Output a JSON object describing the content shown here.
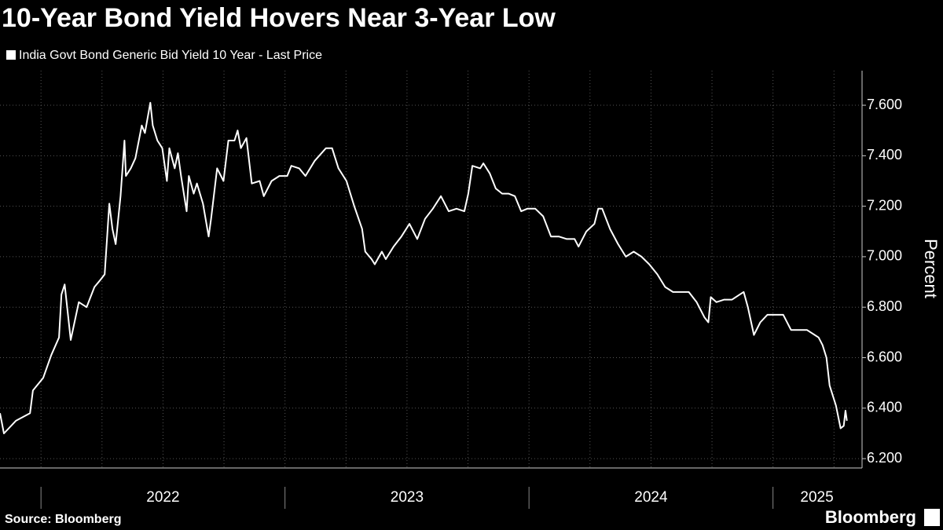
{
  "chart_data": {
    "type": "line",
    "title": "10-Year Bond Yield Hovers Near 3-Year Low",
    "y_label": "Percent",
    "source": "Source: Bloomberg",
    "brand": "Bloomberg",
    "xlim": [
      2021.832,
      2025.365
    ],
    "ylim": [
      6.163,
      7.737
    ],
    "xticks": [
      {
        "value": 2022.5,
        "label": "2022"
      },
      {
        "value": 2023.5,
        "label": "2023"
      },
      {
        "value": 2024.5,
        "label": "2024"
      },
      {
        "value": 2025.18,
        "label": "2025"
      }
    ],
    "yticks": [
      {
        "value": 6.2,
        "label": "6.200"
      },
      {
        "value": 6.4,
        "label": "6.400"
      },
      {
        "value": 6.6,
        "label": "6.600"
      },
      {
        "value": 6.8,
        "label": "6.800"
      },
      {
        "value": 7.0,
        "label": "7.000"
      },
      {
        "value": 7.2,
        "label": "7.200"
      },
      {
        "value": 7.4,
        "label": "7.400"
      },
      {
        "value": 7.6,
        "label": "7.600"
      }
    ],
    "grid": true,
    "x": [
      2021.832,
      2021.848,
      2021.897,
      2021.955,
      2021.967,
      2022.009,
      2022.042,
      2022.074,
      2022.084,
      2022.097,
      2022.122,
      2022.155,
      2022.187,
      2022.219,
      2022.245,
      2022.261,
      2022.28,
      2022.293,
      2022.306,
      2022.326,
      2022.342,
      2022.348,
      2022.368,
      2022.387,
      2022.413,
      2022.426,
      2022.448,
      2022.458,
      2022.477,
      2022.497,
      2022.516,
      2022.526,
      2022.548,
      2022.561,
      2022.574,
      2022.597,
      2022.606,
      2022.626,
      2022.639,
      2022.664,
      2022.687,
      2022.697,
      2022.722,
      2022.748,
      2022.768,
      2022.793,
      2022.806,
      2022.819,
      2022.842,
      2022.864,
      2022.896,
      2022.913,
      2022.945,
      2022.977,
      2023.009,
      2023.026,
      2023.058,
      2023.084,
      2023.122,
      2023.168,
      2023.193,
      2023.219,
      2023.252,
      2023.284,
      2023.316,
      2023.329,
      2023.355,
      2023.368,
      2023.397,
      2023.413,
      2023.445,
      2023.477,
      2023.51,
      2023.542,
      2023.574,
      2023.606,
      2023.639,
      2023.671,
      2023.703,
      2023.735,
      2023.751,
      2023.768,
      2023.8,
      2023.813,
      2023.839,
      2023.864,
      2023.89,
      2023.916,
      2023.942,
      2023.968,
      2023.993,
      2024.026,
      2024.058,
      2024.09,
      2024.122,
      2024.155,
      2024.187,
      2024.203,
      2024.235,
      2024.268,
      2024.284,
      2024.3,
      2024.332,
      2024.365,
      2024.397,
      2024.429,
      2024.461,
      2024.493,
      2024.526,
      2024.558,
      2024.59,
      2024.622,
      2024.655,
      2024.687,
      2024.719,
      2024.735,
      2024.745,
      2024.768,
      2024.8,
      2024.832,
      2024.864,
      2024.88,
      2024.897,
      2024.922,
      2024.948,
      2024.977,
      2025.01,
      2025.042,
      2025.074,
      2025.106,
      2025.139,
      2025.171,
      2025.187,
      2025.203,
      2025.219,
      2025.232,
      2025.258,
      2025.277,
      2025.29,
      2025.297,
      2025.303
    ],
    "series": [
      {
        "name": "India Govt Bond Generic Bid Yield 10 Year - Last Price",
        "color": "#ffffff",
        "values": [
          6.38,
          6.3,
          6.35,
          6.38,
          6.47,
          6.52,
          6.61,
          6.68,
          6.85,
          6.89,
          6.67,
          6.82,
          6.8,
          6.88,
          6.91,
          6.93,
          7.21,
          7.11,
          7.05,
          7.24,
          7.46,
          7.32,
          7.35,
          7.39,
          7.52,
          7.49,
          7.61,
          7.52,
          7.46,
          7.43,
          7.3,
          7.43,
          7.35,
          7.41,
          7.32,
          7.18,
          7.32,
          7.25,
          7.29,
          7.21,
          7.08,
          7.15,
          7.35,
          7.3,
          7.46,
          7.46,
          7.5,
          7.43,
          7.47,
          7.29,
          7.3,
          7.24,
          7.3,
          7.32,
          7.32,
          7.36,
          7.35,
          7.32,
          7.38,
          7.43,
          7.43,
          7.35,
          7.3,
          7.2,
          7.11,
          7.02,
          6.99,
          6.97,
          7.02,
          6.99,
          7.04,
          7.08,
          7.13,
          7.07,
          7.15,
          7.19,
          7.24,
          7.18,
          7.19,
          7.18,
          7.25,
          7.36,
          7.35,
          7.37,
          7.33,
          7.27,
          7.25,
          7.25,
          7.24,
          7.18,
          7.19,
          7.19,
          7.16,
          7.08,
          7.08,
          7.07,
          7.07,
          7.04,
          7.1,
          7.13,
          7.19,
          7.19,
          7.11,
          7.05,
          7.0,
          7.02,
          7.0,
          6.97,
          6.93,
          6.88,
          6.86,
          6.86,
          6.86,
          6.82,
          6.76,
          6.74,
          6.84,
          6.82,
          6.83,
          6.83,
          6.85,
          6.86,
          6.8,
          6.69,
          6.74,
          6.77,
          6.77,
          6.77,
          6.71,
          6.71,
          6.71,
          6.69,
          6.68,
          6.65,
          6.6,
          6.49,
          6.41,
          6.32,
          6.33,
          6.39,
          6.35
        ]
      }
    ]
  }
}
